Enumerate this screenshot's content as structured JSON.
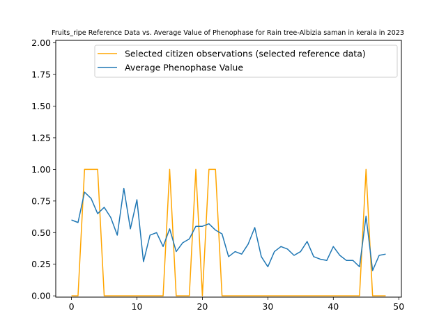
{
  "chart_data": {
    "type": "line",
    "title": "Fruits_ripe Reference Data vs. Average Value of Phenophase for Rain tree-Albizia saman in kerala in 2023",
    "xlabel": "",
    "ylabel": "",
    "xlim": [
      -2.4,
      50.4
    ],
    "ylim": [
      -0.01,
      2.02
    ],
    "x_ticks": [
      0,
      10,
      20,
      30,
      40,
      50
    ],
    "y_ticks": [
      0.0,
      0.25,
      0.5,
      0.75,
      1.0,
      1.25,
      1.5,
      1.75,
      2.0
    ],
    "y_tick_labels": [
      "0.00",
      "0.25",
      "0.50",
      "0.75",
      "1.00",
      "1.25",
      "1.50",
      "1.75",
      "2.00"
    ],
    "grid": false,
    "legend_position": "upper right",
    "x": [
      0,
      1,
      2,
      3,
      4,
      5,
      6,
      7,
      8,
      9,
      10,
      11,
      12,
      13,
      14,
      15,
      16,
      17,
      18,
      19,
      20,
      21,
      22,
      23,
      24,
      25,
      26,
      27,
      28,
      29,
      30,
      31,
      32,
      33,
      34,
      35,
      36,
      37,
      38,
      39,
      40,
      41,
      42,
      43,
      44,
      45,
      46,
      47,
      48
    ],
    "series": [
      {
        "name": "Selected citizen observations (selected reference data)",
        "color": "#ffa500",
        "values": [
          0,
          0,
          1,
          1,
          1,
          0,
          0,
          0,
          0,
          0,
          0,
          0,
          0,
          0,
          0,
          1,
          0,
          0,
          0,
          1,
          0,
          1,
          1,
          0,
          0,
          0,
          0,
          0,
          0,
          0,
          0,
          0,
          0,
          0,
          0,
          0,
          0,
          0,
          0,
          0,
          0,
          0,
          0,
          0,
          0,
          1,
          0,
          0,
          0
        ]
      },
      {
        "name": "Average Phenophase Value",
        "color": "#1f77b4",
        "values": [
          0.6,
          0.58,
          0.82,
          0.77,
          0.65,
          0.7,
          0.62,
          0.48,
          0.85,
          0.53,
          0.76,
          0.27,
          0.48,
          0.5,
          0.39,
          0.53,
          0.35,
          0.42,
          0.45,
          0.55,
          0.55,
          0.57,
          0.52,
          0.49,
          0.31,
          0.35,
          0.33,
          0.41,
          0.54,
          0.31,
          0.23,
          0.35,
          0.39,
          0.37,
          0.32,
          0.35,
          0.43,
          0.31,
          0.29,
          0.28,
          0.39,
          0.32,
          0.28,
          0.28,
          0.23,
          0.63,
          0.2,
          0.32,
          0.33
        ]
      }
    ]
  }
}
